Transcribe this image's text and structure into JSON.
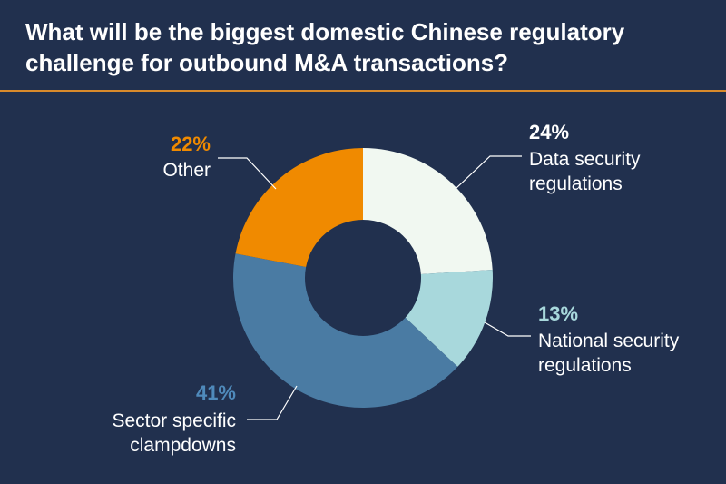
{
  "title": "What will be the biggest domestic Chinese regulatory challenge for outbound M&A transactions?",
  "colors": {
    "background": "#21304e",
    "title_rule": "#d98a2b"
  },
  "chart_data": {
    "type": "pie",
    "title": "What will be the biggest domestic Chinese regulatory challenge for outbound M&A transactions?",
    "categories": [
      "Data security regulations",
      "National security regulations",
      "Sector specific clampdowns",
      "Other"
    ],
    "values": [
      24,
      13,
      41,
      22
    ],
    "slices": [
      {
        "label_lines": [
          "Data security",
          "regulations"
        ],
        "value": 24,
        "value_label": "24%",
        "color": "#f1f8f1",
        "label_color": "#ffffff"
      },
      {
        "label_lines": [
          "National security",
          "regulations"
        ],
        "value": 13,
        "value_label": "13%",
        "color": "#a8d8dc",
        "label_color": "#a8d8dc"
      },
      {
        "label_lines": [
          "Sector specific",
          "clampdowns"
        ],
        "value": 41,
        "value_label": "41%",
        "color": "#4a7ba3",
        "label_color": "#4f8abb"
      },
      {
        "label_lines": [
          "Other"
        ],
        "value": 22,
        "value_label": "22%",
        "color": "#f08a00",
        "label_color": "#f08a00"
      }
    ]
  }
}
